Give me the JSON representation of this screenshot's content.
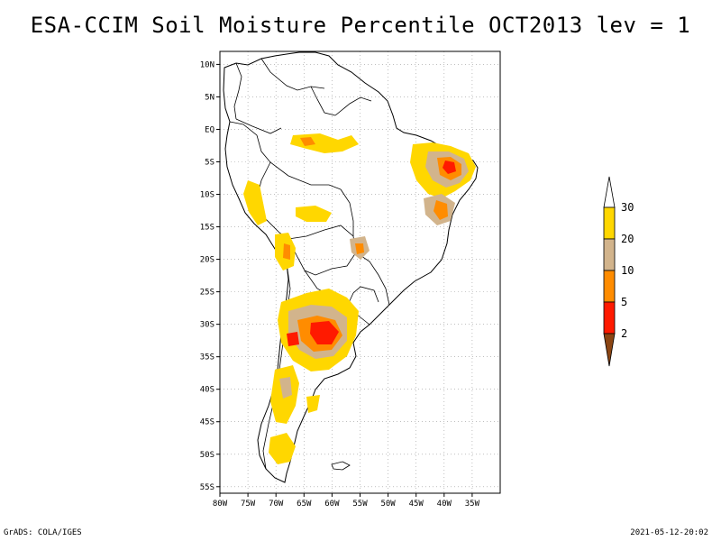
{
  "title": "ESA-CCIM Soil Moisture Percentile OCT2013 lev = 1",
  "footer_left": "GrADS: COLA/IGES",
  "footer_right": "2021-05-12-20:02",
  "map": {
    "lon_range": [
      -80,
      -30
    ],
    "lat_range": [
      -56,
      12
    ],
    "lon_labels": [
      "80W",
      "75W",
      "70W",
      "65W",
      "60W",
      "55W",
      "50W",
      "45W",
      "40W",
      "35W"
    ],
    "lon_values": [
      -80,
      -75,
      -70,
      -65,
      -60,
      -55,
      -50,
      -45,
      -40,
      -35
    ],
    "lat_labels": [
      "10N",
      "5N",
      "EQ",
      "5S",
      "10S",
      "15S",
      "20S",
      "25S",
      "30S",
      "35S",
      "40S",
      "45S",
      "50S",
      "55S"
    ],
    "lat_values": [
      10,
      5,
      0,
      -5,
      -10,
      -15,
      -20,
      -25,
      -30,
      -35,
      -40,
      -45,
      -50,
      -55
    ],
    "grid": "dotted"
  },
  "legend": {
    "labels": [
      "30",
      "20",
      "10",
      "5",
      "2"
    ],
    "colors": {
      "above30": "#ffffff",
      "c20_30": "#ffd700",
      "c10_20": "#d2b48c",
      "c5_10": "#ff8c00",
      "c2_5": "#ff1a00",
      "below2": "#8b4513"
    }
  }
}
